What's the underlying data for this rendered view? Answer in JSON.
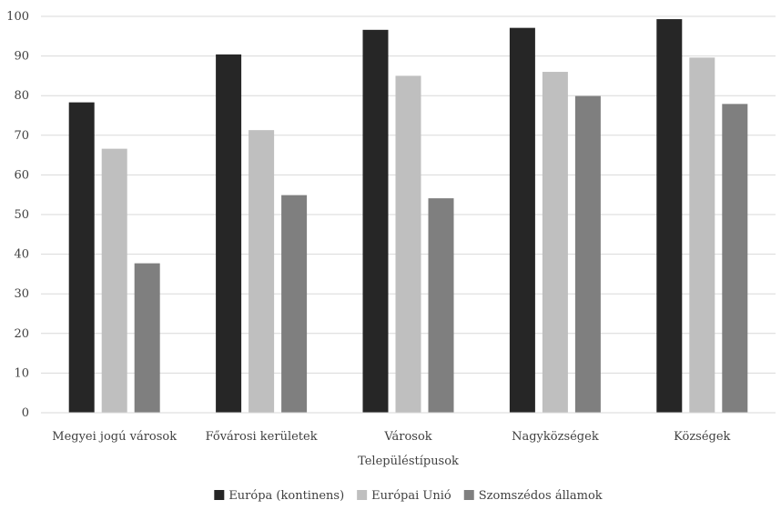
{
  "chart_data": {
    "type": "bar",
    "title": "",
    "xlabel": "Településtípusok",
    "ylabel": "",
    "ylim": [
      0,
      100
    ],
    "yticks": [
      0,
      10,
      20,
      30,
      40,
      50,
      60,
      70,
      80,
      90,
      100
    ],
    "grid": true,
    "legend_position": "bottom",
    "categories": [
      "Megyei jogú városok",
      "Fővárosi kerületek",
      "Városok",
      "Nagyközségek",
      "Községek"
    ],
    "series": [
      {
        "name": "Európa (kontinens)",
        "color": "#262626",
        "values": [
          78.3,
          90.4,
          96.6,
          97.1,
          99.3
        ]
      },
      {
        "name": "Európai Unió",
        "color": "#bfbfbf",
        "values": [
          66.6,
          71.3,
          85.0,
          86.0,
          89.6
        ]
      },
      {
        "name": "Szomszédos államok",
        "color": "#7f7f7f",
        "values": [
          37.7,
          54.9,
          54.1,
          79.9,
          77.9
        ]
      }
    ]
  }
}
